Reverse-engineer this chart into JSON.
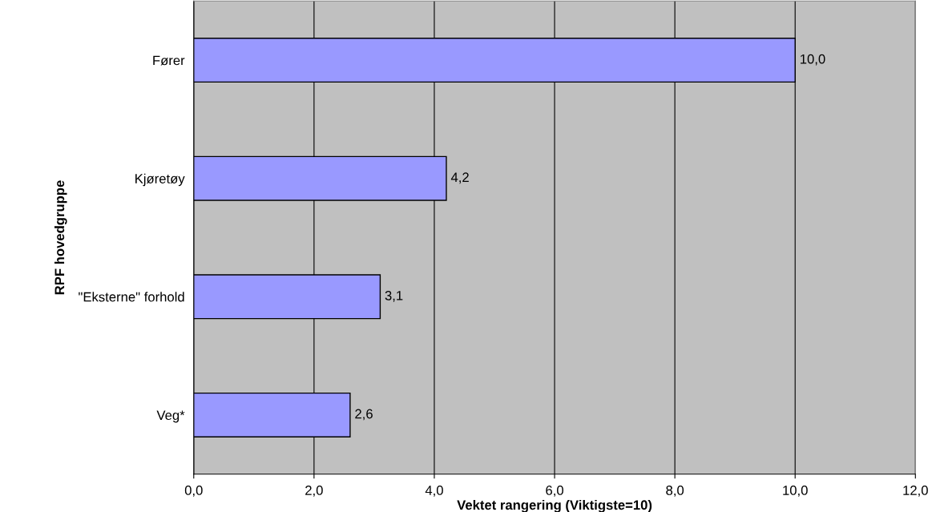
{
  "chart_data": {
    "type": "bar",
    "orientation": "horizontal",
    "categories": [
      "Fører",
      "Kjøretøy",
      "\"Eksterne\" forhold",
      "Veg*"
    ],
    "values": [
      10.0,
      4.2,
      3.1,
      2.6
    ],
    "value_labels": [
      "10,0",
      "4,2",
      "3,1",
      "2,6"
    ],
    "color": "#9999ff",
    "xlabel": "Vektet rangering (Viktigste=10)",
    "ylabel": "RPF hovedgruppe",
    "xlim": [
      0,
      12
    ],
    "xticks": [
      {
        "value": 0,
        "label": "0,0"
      },
      {
        "value": 2,
        "label": "2,0"
      },
      {
        "value": 4,
        "label": "4,0"
      },
      {
        "value": 6,
        "label": "6,0"
      },
      {
        "value": 8,
        "label": "8,0"
      },
      {
        "value": 10,
        "label": "10,0"
      },
      {
        "value": 12,
        "label": "12,0"
      }
    ],
    "grid": "x",
    "legend": false
  }
}
